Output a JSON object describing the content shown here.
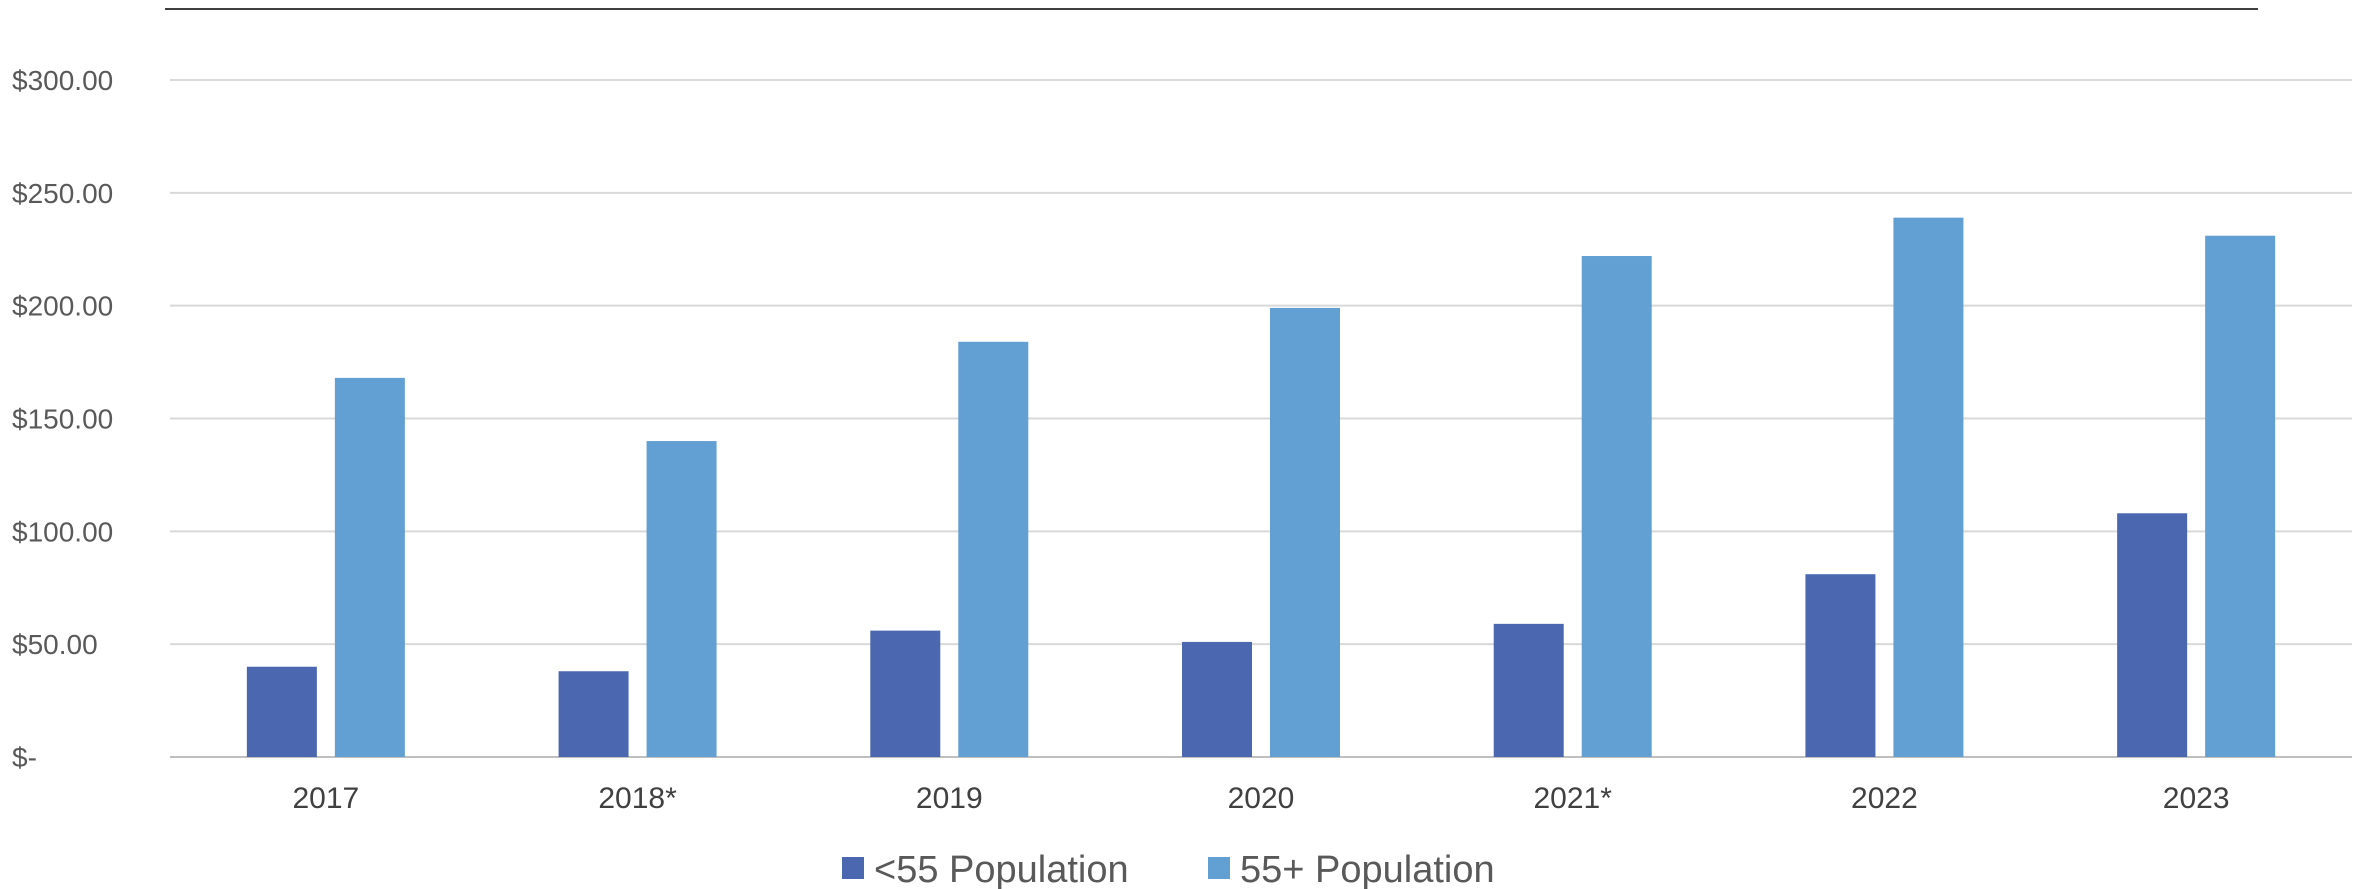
{
  "chart_data": {
    "type": "bar",
    "categories": [
      "2017",
      "2018*",
      "2019",
      "2020",
      "2021*",
      "2022",
      "2023"
    ],
    "series": [
      {
        "name": "<55 Population",
        "color": "#4a67b0",
        "values": [
          40,
          38,
          56,
          51,
          59,
          81,
          108
        ]
      },
      {
        "name": "55+ Population",
        "color": "#629fd2",
        "values": [
          168,
          140,
          184,
          199,
          222,
          239,
          231
        ]
      }
    ],
    "ylim": [
      0,
      300
    ],
    "ytick_labels": [
      "$-",
      "$50.00",
      "$100.00",
      "$150.00",
      "$200.00",
      "$250.00",
      "$300.00"
    ],
    "grid": true,
    "legend_position": "bottom"
  }
}
